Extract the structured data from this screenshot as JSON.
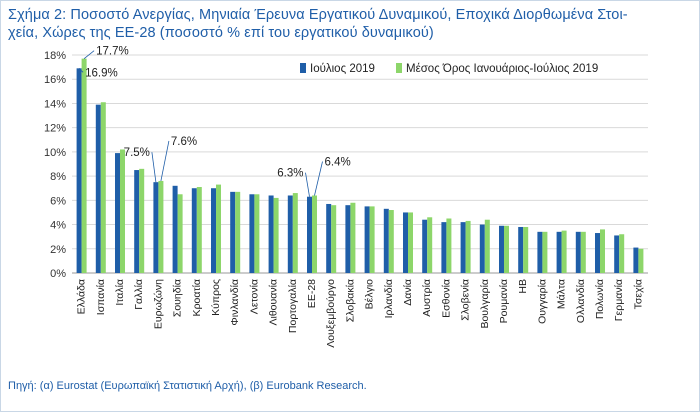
{
  "title": "Σχήμα 2: Ποσοστό Ανεργίας, Μηνιαία Έρευνα Εργατικού Δυναμικού, Εποχικά Διορθωμένα Στοιχεία, Χώρες της ΕΕ-28 (ποσοστό % επί του εργατικού δυναμικού)",
  "title_line1": "Σχήμα 2: Ποσοστό Ανεργίας, Μηνιαία Έρευνα Εργατικού Δυναμικού, Εποχικά Διορθωμένα Στοι-",
  "title_line2": "χεία, Χώρες της ΕΕ-28 (ποσοστό % επί του εργατικού δυναμικού)",
  "source": "Πηγή: (α) Eurostat (Ευρωπαϊκή Στατιστική Αρχή), (β) Eurobank Research.",
  "colors": {
    "series1": "#1f5ea8",
    "series2": "#8dd66a",
    "text": "#1f5ea8",
    "grid": "#d9d9d9"
  },
  "chart_data": {
    "type": "bar",
    "categories": [
      "Ελλάδα",
      "Ισπανία",
      "Ιταλία",
      "Γαλλία",
      "Ευρωζώνη",
      "Σουηδία",
      "Κροατία",
      "Κύπρος",
      "Φινλανδία",
      "Λετονία",
      "Λιθουανία",
      "Πορτογαλία",
      "ΕΕ-28",
      "Λουξεμβούργο",
      "Σλοβακία",
      "Βέλγιο",
      "Ιρλανδία",
      "Δανία",
      "Αυστρία",
      "Εσθονία",
      "Σλοβενία",
      "Βουλγαρία",
      "Ρουμανία",
      "ΗΒ",
      "Ουγγαρία",
      "Μάλτα",
      "Ολλανδία",
      "Πολωνία",
      "Γερμανία",
      "Τσεχία"
    ],
    "series": [
      {
        "name": "Ιούλιος 2019",
        "values": [
          16.9,
          13.9,
          9.9,
          8.5,
          7.5,
          7.2,
          7.0,
          7.0,
          6.7,
          6.5,
          6.4,
          6.4,
          6.3,
          5.7,
          5.6,
          5.5,
          5.3,
          5.0,
          4.4,
          4.2,
          4.2,
          4.0,
          3.9,
          3.8,
          3.4,
          3.4,
          3.4,
          3.3,
          3.1,
          2.1
        ]
      },
      {
        "name": "Μέσος Όρος Ιανουάριος-Ιούλιος 2019",
        "values": [
          17.7,
          14.1,
          10.2,
          8.6,
          7.6,
          6.5,
          7.1,
          7.3,
          6.7,
          6.5,
          6.2,
          6.6,
          6.4,
          5.6,
          5.8,
          5.5,
          5.2,
          5.0,
          4.6,
          4.5,
          4.3,
          4.4,
          3.9,
          3.8,
          3.4,
          3.5,
          3.4,
          3.6,
          3.2,
          2.0
        ]
      }
    ],
    "ylim": [
      0,
      18
    ],
    "yticks": [
      "0%",
      "2%",
      "4%",
      "6%",
      "8%",
      "10%",
      "12%",
      "14%",
      "16%",
      "18%"
    ],
    "yticks_values": [
      0,
      2,
      4,
      6,
      8,
      10,
      12,
      14,
      16,
      18
    ],
    "grid": true,
    "legend_position": "top-right",
    "annotations": [
      {
        "text": "16.9%",
        "category": "Ελλάδα",
        "series": 0
      },
      {
        "text": "17.7%",
        "category": "Ελλάδα",
        "series": 1
      },
      {
        "text": "7.5%",
        "category": "Ευρωζώνη",
        "series": 0
      },
      {
        "text": "7.6%",
        "category": "Ευρωζώνη",
        "series": 1
      },
      {
        "text": "6.3%",
        "category": "ΕΕ-28",
        "series": 0
      },
      {
        "text": "6.4%",
        "category": "ΕΕ-28",
        "series": 1
      }
    ]
  }
}
